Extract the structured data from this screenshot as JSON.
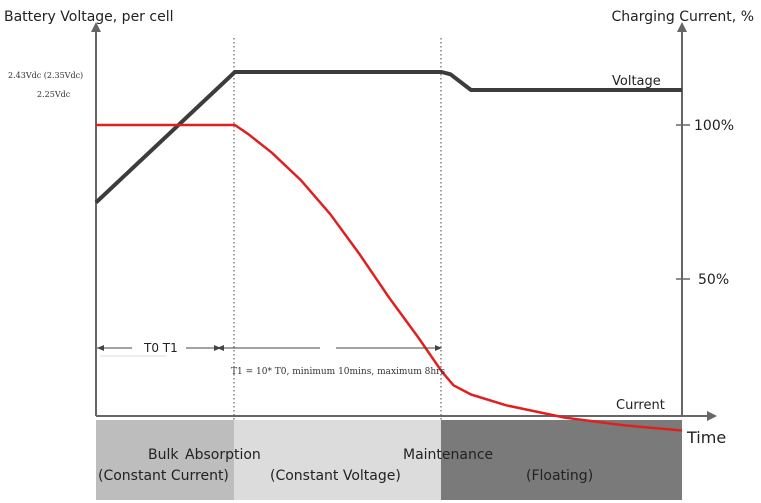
{
  "chart_data": {
    "type": "line",
    "left_axis_title": "Battery Voltage, per cell",
    "right_axis_title": "Charging Current, %",
    "x_axis_title": "Time",
    "voltage_levels": [
      {
        "text": "2.43Vdc (2.35Vdc)",
        "value": 2.43
      },
      {
        "text": "2.25Vdc",
        "value": 2.25
      }
    ],
    "right_ticks": [
      {
        "label": "100%",
        "value": 100
      },
      {
        "label": "50%",
        "value": 50
      }
    ],
    "series": [
      {
        "name": "Voltage",
        "color": "#3c3c3c",
        "points": [
          [
            0,
            1.85
          ],
          [
            0.237,
            2.43
          ],
          [
            0.59,
            2.43
          ],
          [
            0.605,
            2.42
          ],
          [
            0.64,
            2.35
          ],
          [
            1.0,
            2.35
          ]
        ]
      },
      {
        "name": "Current",
        "color": "#e02020",
        "points": [
          [
            0,
            100
          ],
          [
            0.237,
            100
          ],
          [
            0.26,
            97
          ],
          [
            0.3,
            91
          ],
          [
            0.35,
            82
          ],
          [
            0.4,
            71
          ],
          [
            0.45,
            58
          ],
          [
            0.5,
            44
          ],
          [
            0.55,
            31
          ],
          [
            0.59,
            20
          ],
          [
            0.61,
            15.5
          ],
          [
            0.64,
            12.5
          ],
          [
            0.7,
            9
          ],
          [
            0.8,
            5
          ],
          [
            0.9,
            2.5
          ],
          [
            1.0,
            0.8
          ]
        ]
      }
    ],
    "phase_boundaries": [
      0.237,
      0.59
    ],
    "interval_labels": [
      {
        "text": "T0  T1"
      },
      {
        "text": "T1 = 10* T0, minimum 10mins, maximum 8hrs"
      }
    ],
    "stages": [
      {
        "title": "Bulk",
        "subtitle": "(Constant Current)",
        "color": "#bdbdbd"
      },
      {
        "title": "Absorption",
        "subtitle": "(Constant Voltage)",
        "color": "#dcdcdc"
      },
      {
        "title": "Maintenance",
        "subtitle": "(Floating)",
        "color": "#7a7a7a"
      }
    ]
  }
}
